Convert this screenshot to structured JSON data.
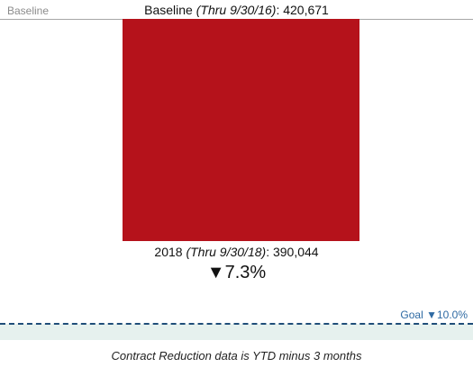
{
  "chart_data": {
    "type": "bar",
    "baseline": {
      "tag": "Baseline",
      "label": "Baseline",
      "period": "(Thru 9/30/16)",
      "value": 420671,
      "value_text": "420,671"
    },
    "current": {
      "label": "2018",
      "period": "(Thru 9/30/18)",
      "value": 390044,
      "value_text": "390,044",
      "change_text": "▼7.3%",
      "change_percent": -7.3
    },
    "goal": {
      "label": "Goal ▼10.0%",
      "change_percent": -10.0,
      "value": 378604
    },
    "footnote": "Contract Reduction data is YTD minus 3 months",
    "colors": {
      "bar": "#b5121b",
      "goal_line": "#1f4e79",
      "goal_band": "#e6f1ee",
      "goal_text": "#2e6aa3"
    }
  }
}
